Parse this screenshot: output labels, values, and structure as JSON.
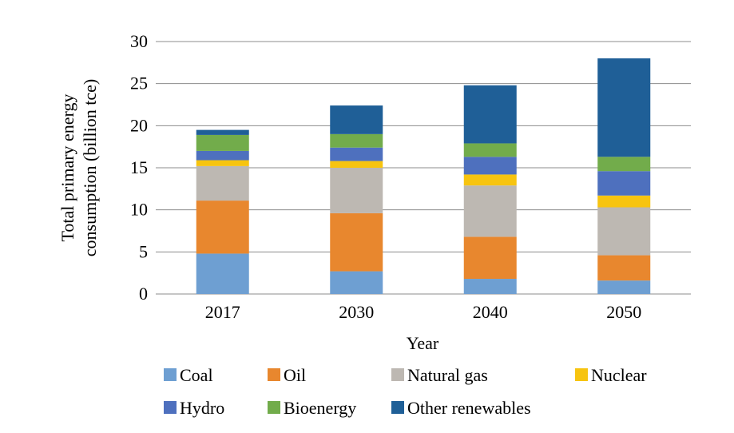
{
  "chart_data": {
    "type": "bar",
    "stacked": true,
    "title": "",
    "xlabel": "Year",
    "ylabel_lines": [
      "Total primary energy",
      "consumption (billion tce)"
    ],
    "categories": [
      "2017",
      "2030",
      "2040",
      "2050"
    ],
    "ylim": [
      0,
      30
    ],
    "yticks": [
      "0",
      "5",
      "10",
      "15",
      "20",
      "25",
      "30"
    ],
    "grid": true,
    "legend_position": "bottom",
    "series": [
      {
        "name": "Coal",
        "color": "#6E9FD2",
        "values": [
          4.8,
          2.7,
          1.8,
          1.6
        ]
      },
      {
        "name": "Oil",
        "color": "#E8872E",
        "values": [
          6.3,
          6.9,
          5.0,
          3.0
        ]
      },
      {
        "name": "Natural gas",
        "color": "#BDB8B2",
        "values": [
          4.1,
          5.4,
          6.1,
          5.7
        ]
      },
      {
        "name": "Nuclear",
        "color": "#F7C410",
        "values": [
          0.7,
          0.8,
          1.3,
          1.4
        ]
      },
      {
        "name": "Hydro",
        "color": "#4E70BE",
        "values": [
          1.1,
          1.6,
          2.1,
          2.9
        ]
      },
      {
        "name": "Bioenergy",
        "color": "#72AC4B",
        "values": [
          1.9,
          1.6,
          1.6,
          1.7
        ]
      },
      {
        "name": "Other renewables",
        "color": "#1F5F97",
        "values": [
          0.6,
          3.4,
          6.9,
          11.7
        ]
      }
    ]
  }
}
